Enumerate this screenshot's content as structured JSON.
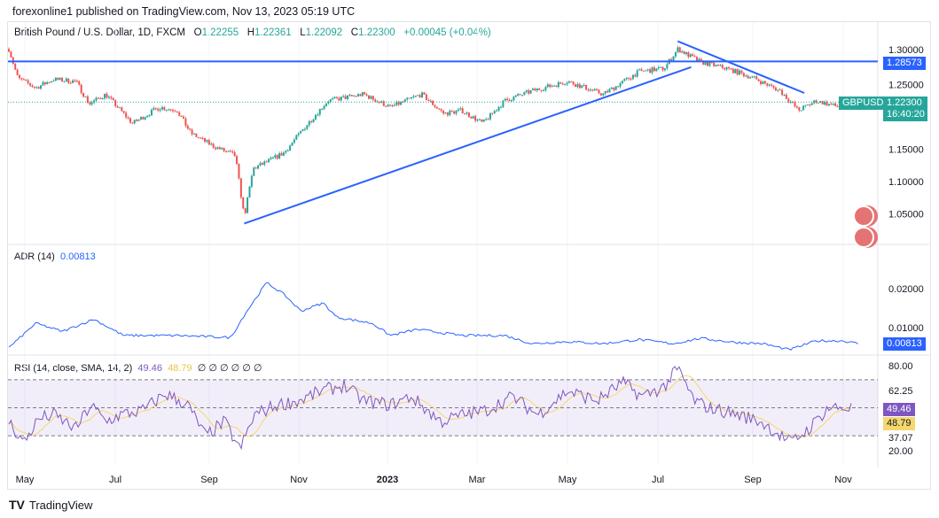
{
  "published": "forexonline1 published on TradingView.com, Nov 13, 2023 05:19 UTC",
  "legend": {
    "symbol": "British Pound / U.S. Dollar, 1D, FXCM",
    "o_label": "O",
    "o": "1.22255",
    "h_label": "H",
    "h": "1.22361",
    "l_label": "L",
    "l": "1.22092",
    "c_label": "C",
    "c": "1.22300",
    "change": "+0.00045 (+0.04%)"
  },
  "tags": {
    "hline": "1.28573",
    "symbol": "GBPUSD",
    "price": "1.22300",
    "countdown": "16:40:20",
    "adr": "0.00813",
    "rsi": "49.46",
    "rsi_sma": "48.79"
  },
  "adr_legend": {
    "name": "ADR (14)",
    "value": "0.00813"
  },
  "rsi_legend": {
    "name": "RSI (14, close, SMA, 14, 2)",
    "value": "49.46",
    "sma": "48.79",
    "extras": "∅ ∅ ∅ ∅ ∅ ∅"
  },
  "footer": "TradingView",
  "colors": {
    "up": "#26a69a",
    "down": "#ef5350",
    "line": "#2962ff",
    "adr": "#2962ff",
    "rsi": "#7e57c2",
    "sma": "#f5d76e"
  },
  "chart_data": [
    {
      "type": "candlestick",
      "title": "British Pound / U.S. Dollar, 1D, FXCM",
      "x_ticks": [
        "May",
        "Jul",
        "Sep",
        "Nov",
        "2023",
        "Mar",
        "May",
        "Jul",
        "Sep",
        "Nov"
      ],
      "y_ticks": [
        "1.30000",
        "1.25000",
        "1.15000",
        "1.10000",
        "1.05000"
      ],
      "ylim": [
        1.01,
        1.325
      ],
      "close_keypoints_days_since_2022_04_20": [
        [
          0,
          1.305
        ],
        [
          6,
          1.26
        ],
        [
          18,
          1.245
        ],
        [
          30,
          1.258
        ],
        [
          45,
          1.255
        ],
        [
          54,
          1.22
        ],
        [
          65,
          1.235
        ],
        [
          83,
          1.19
        ],
        [
          101,
          1.215
        ],
        [
          113,
          1.21
        ],
        [
          122,
          1.175
        ],
        [
          137,
          1.155
        ],
        [
          152,
          1.14
        ],
        [
          158,
          1.045
        ],
        [
          164,
          1.12
        ],
        [
          173,
          1.13
        ],
        [
          185,
          1.145
        ],
        [
          199,
          1.185
        ],
        [
          214,
          1.225
        ],
        [
          238,
          1.235
        ],
        [
          256,
          1.215
        ],
        [
          277,
          1.235
        ],
        [
          292,
          1.205
        ],
        [
          304,
          1.21
        ],
        [
          318,
          1.19
        ],
        [
          333,
          1.225
        ],
        [
          351,
          1.24
        ],
        [
          375,
          1.255
        ],
        [
          399,
          1.235
        ],
        [
          423,
          1.27
        ],
        [
          440,
          1.275
        ],
        [
          449,
          1.305
        ],
        [
          464,
          1.285
        ],
        [
          482,
          1.275
        ],
        [
          500,
          1.26
        ],
        [
          518,
          1.24
        ],
        [
          530,
          1.21
        ],
        [
          542,
          1.225
        ],
        [
          557,
          1.215
        ],
        [
          566,
          1.223
        ]
      ],
      "annotations": {
        "horizontal_line": 1.28573,
        "trendline_support": [
          [
            158,
            1.035
          ],
          [
            458,
            1.277
          ]
        ],
        "trendline_resistance": [
          [
            449,
            1.317
          ],
          [
            534,
            1.237
          ]
        ]
      }
    },
    {
      "type": "line",
      "title": "ADR (14)",
      "y_ticks": [
        "0.02000",
        "0.01000"
      ],
      "ylim": [
        0.0035,
        0.0255
      ],
      "keypoints": [
        [
          0,
          0.0055
        ],
        [
          18,
          0.0115
        ],
        [
          36,
          0.0095
        ],
        [
          57,
          0.0125
        ],
        [
          77,
          0.0085
        ],
        [
          113,
          0.0085
        ],
        [
          149,
          0.008
        ],
        [
          158,
          0.0135
        ],
        [
          173,
          0.0215
        ],
        [
          185,
          0.0185
        ],
        [
          196,
          0.0145
        ],
        [
          211,
          0.0165
        ],
        [
          220,
          0.013
        ],
        [
          244,
          0.0115
        ],
        [
          256,
          0.0085
        ],
        [
          274,
          0.01
        ],
        [
          304,
          0.0085
        ],
        [
          333,
          0.0085
        ],
        [
          351,
          0.0065
        ],
        [
          375,
          0.007
        ],
        [
          399,
          0.0065
        ],
        [
          423,
          0.0075
        ],
        [
          446,
          0.0065
        ],
        [
          464,
          0.0078
        ],
        [
          488,
          0.0068
        ],
        [
          506,
          0.0065
        ],
        [
          524,
          0.005
        ],
        [
          542,
          0.0072
        ],
        [
          560,
          0.0072
        ],
        [
          570,
          0.0065
        ]
      ]
    },
    {
      "type": "line",
      "title": "RSI (14, close, SMA, 14, 2)",
      "y_ticks": [
        "80.00",
        "62.25",
        "37.07",
        "20.00"
      ],
      "bands": [
        30,
        50,
        70
      ],
      "ylim": [
        15,
        85
      ],
      "keypoints": [
        [
          0,
          40
        ],
        [
          10,
          25
        ],
        [
          20,
          42
        ],
        [
          30,
          45
        ],
        [
          45,
          35
        ],
        [
          55,
          52
        ],
        [
          65,
          40
        ],
        [
          75,
          45
        ],
        [
          90,
          48
        ],
        [
          105,
          60
        ],
        [
          120,
          52
        ],
        [
          132,
          30
        ],
        [
          145,
          40
        ],
        [
          155,
          20
        ],
        [
          165,
          45
        ],
        [
          180,
          52
        ],
        [
          195,
          55
        ],
        [
          210,
          62
        ],
        [
          225,
          66
        ],
        [
          238,
          55
        ],
        [
          256,
          52
        ],
        [
          270,
          58
        ],
        [
          290,
          40
        ],
        [
          305,
          45
        ],
        [
          320,
          48
        ],
        [
          338,
          58
        ],
        [
          355,
          45
        ],
        [
          375,
          62
        ],
        [
          395,
          55
        ],
        [
          412,
          68
        ],
        [
          425,
          58
        ],
        [
          440,
          65
        ],
        [
          449,
          78
        ],
        [
          460,
          55
        ],
        [
          470,
          50
        ],
        [
          490,
          45
        ],
        [
          505,
          40
        ],
        [
          525,
          25
        ],
        [
          537,
          35
        ],
        [
          550,
          50
        ],
        [
          562,
          50
        ],
        [
          566,
          49.5
        ]
      ]
    }
  ]
}
